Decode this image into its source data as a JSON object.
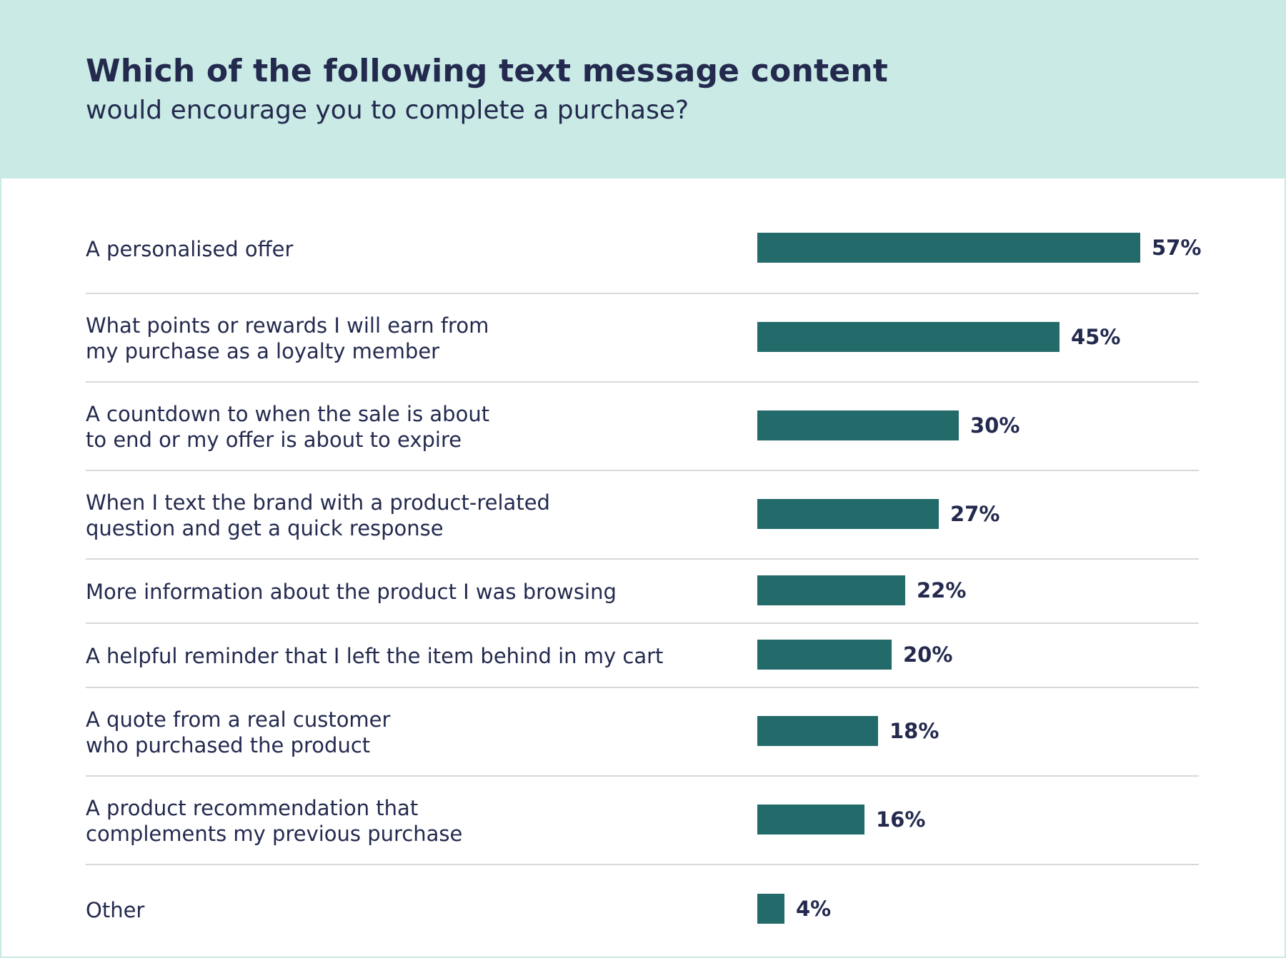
{
  "header": {
    "title": "Which of the following text message content",
    "subtitle": "would encourage you to complete a purchase?"
  },
  "colors": {
    "header_bg": "#c9eae5",
    "bar": "#236b6a",
    "text": "#232a4e",
    "divider": "#d8d8d8"
  },
  "chart_data": {
    "type": "bar",
    "orientation": "horizontal",
    "title": "Which of the following text message content",
    "subtitle": "would encourage you to complete a purchase?",
    "unit": "%",
    "xlim": [
      0,
      57
    ],
    "grid": false,
    "legend": "none",
    "categories": [
      "A personalised offer",
      "What points or rewards I will earn from\nmy purchase as a loyalty member",
      "A countdown to when the sale is about\nto end or my offer is about to expire",
      "When I text the brand with a product-related\nquestion and get a quick response",
      "More information about the product I was browsing",
      "A helpful reminder that I left the item behind in my cart",
      "A quote from a real customer\nwho purchased the product",
      "A product recommendation that\ncomplements my previous purchase",
      "Other"
    ],
    "values": [
      57,
      45,
      30,
      27,
      22,
      20,
      18,
      16,
      4
    ],
    "value_labels": [
      "57%",
      "45%",
      "30%",
      "27%",
      "22%",
      "20%",
      "18%",
      "16%",
      "4%"
    ]
  }
}
